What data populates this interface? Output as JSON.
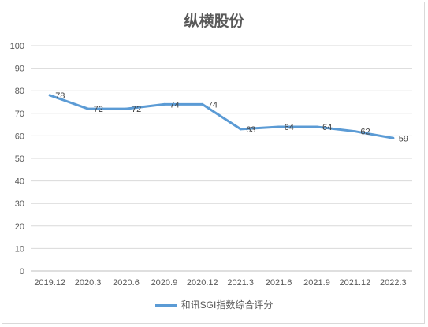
{
  "chart_data": {
    "type": "line",
    "title": "纵横股份",
    "xlabel": "",
    "ylabel": "",
    "ylim": [
      0,
      100
    ],
    "yticks": [
      0,
      10,
      20,
      30,
      40,
      50,
      60,
      70,
      80,
      90,
      100
    ],
    "categories": [
      "2019.12",
      "2020.3",
      "2020.6",
      "2020.9",
      "2020.12",
      "2021.3",
      "2021.6",
      "2021.9",
      "2021.12",
      "2022.3"
    ],
    "series": [
      {
        "name": "和讯SGI指数综合评分",
        "values": [
          78,
          72,
          72,
          74,
          74,
          63,
          64,
          64,
          62,
          59
        ],
        "color": "#5b9bd5"
      }
    ],
    "grid": true,
    "legend_position": "bottom"
  }
}
